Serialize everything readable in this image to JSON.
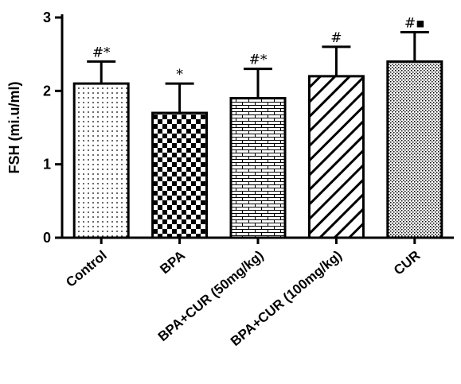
{
  "chart_data": {
    "type": "bar",
    "title": "",
    "xlabel": "",
    "ylabel": "FSH (mi.u/ml)",
    "ylim": [
      0,
      3
    ],
    "yticks": [
      "0",
      "1",
      "2",
      "3"
    ],
    "grid": false,
    "categories": [
      "Control",
      "BPA",
      "BPA+CUR (50mg/kg)",
      "BPA+CUR (100mg/kg)",
      "CUR"
    ],
    "values": [
      2.1,
      1.7,
      1.9,
      2.2,
      2.4
    ],
    "error": [
      0.3,
      0.4,
      0.4,
      0.4,
      0.4
    ],
    "annotations": [
      "#*",
      "*",
      "#*",
      "#",
      "#▪"
    ],
    "fills": [
      "dots",
      "checkerboard",
      "bricks",
      "diagonal-stripes",
      "dense-dots"
    ]
  }
}
